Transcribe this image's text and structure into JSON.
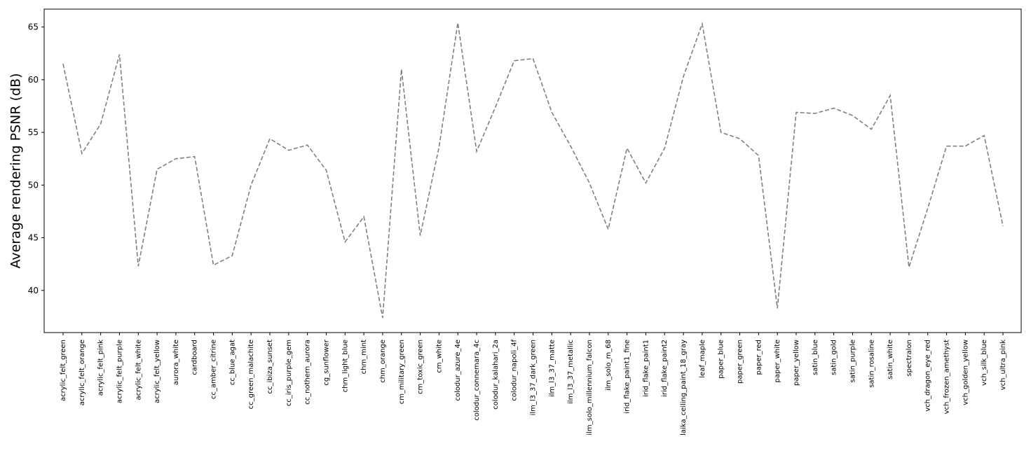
{
  "chart_data": {
    "type": "line",
    "title": "",
    "xlabel": "",
    "ylabel": "Average rendering PSNR (dB)",
    "ylim": [
      36,
      66.7
    ],
    "yticks": [
      40,
      45,
      50,
      55,
      60,
      65
    ],
    "grid": false,
    "line_color": "#808080",
    "line_style": "dashed",
    "categories": [
      "acrylic_felt_green",
      "acrylic_felt_orange",
      "acrylic_felt_pink",
      "acrylic_felt_purple",
      "acrylic_felt_white",
      "acrylic_felt_yellow",
      "aurora_white",
      "cardboard",
      "cc_amber_citrine",
      "cc_blue_agat",
      "cc_green_malachite",
      "cc_ibiza_sunset",
      "cc_iris_purple_gem",
      "cc_nothern_aurora",
      "cg_sunflower",
      "chm_light_blue",
      "chm_mint",
      "chm_orange",
      "cm_military_green",
      "cm_toxic_green",
      "cm_white",
      "colodur_azure_4e",
      "colodur_connemara_4c",
      "colodur_kalahari_2a",
      "colodur_napoli_4f",
      "ilm_l3_37_dark_green",
      "ilm_l3_37_matte",
      "ilm_l3_37_metallic",
      "ilm_solo_millennium_falcon",
      "ilm_solo_m_68",
      "irid_flake_paint1_fine",
      "irid_flake_paint1",
      "irid_flake_paint2",
      "laika_ceiling_paint_18_gray",
      "leaf_maple",
      "paper_blue",
      "paper_green",
      "paper_red",
      "paper_white",
      "paper_yellow",
      "satin_blue",
      "satin_gold",
      "satin_purple",
      "satin_rosaline",
      "satin_white",
      "spectralon",
      "vch_dragon_eye_red",
      "vch_frozen_amethyst",
      "vch_golden_yellow",
      "vch_silk_blue",
      "vch_ultra_pink"
    ],
    "values": [
      61.5,
      53.0,
      55.8,
      62.4,
      42.3,
      51.5,
      52.5,
      52.7,
      42.4,
      43.3,
      50.0,
      54.4,
      53.3,
      53.8,
      51.4,
      44.6,
      47.0,
      37.4,
      61.0,
      45.2,
      53.6,
      65.4,
      53.2,
      57.4,
      61.8,
      62.0,
      56.9,
      53.7,
      50.2,
      45.8,
      53.5,
      50.2,
      53.5,
      60.3,
      65.3,
      55.0,
      54.4,
      52.8,
      38.3,
      56.9,
      56.8,
      57.3,
      56.6,
      55.3,
      58.5,
      42.2,
      47.8,
      53.7,
      53.7,
      54.7,
      46.1
    ]
  }
}
